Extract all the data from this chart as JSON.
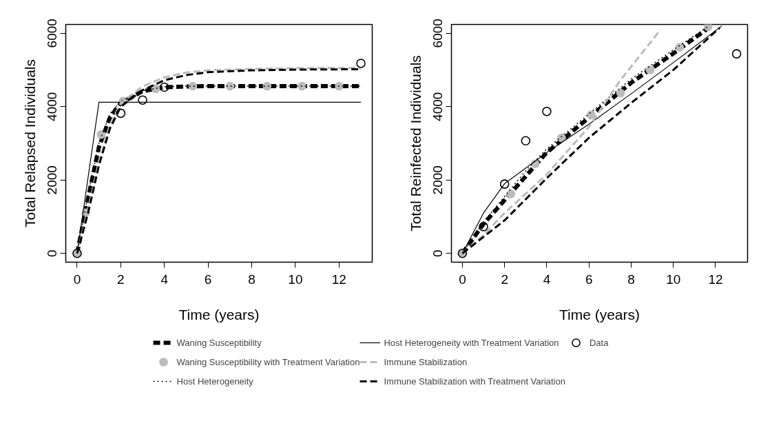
{
  "chart_data": [
    {
      "type": "line",
      "xlabel": "Time (years)",
      "ylabel": "Total Relapsed Individuals",
      "xlim": [
        -0.52,
        13.52
      ],
      "ylim": [
        -240,
        6240
      ],
      "xticks": [
        0,
        2,
        4,
        6,
        8,
        10,
        12
      ],
      "yticks": [
        0,
        2000,
        4000,
        6000
      ],
      "grid": false,
      "legend": "bottom",
      "series": [
        {
          "name": "Waning Susceptibility",
          "color": "#000000",
          "line_style": "dashed",
          "x": [
            0,
            0.5,
            1,
            1.5,
            2,
            3,
            4,
            5,
            6,
            8,
            10,
            13
          ],
          "values": [
            0,
            1500,
            2900,
            3700,
            4100,
            4420,
            4530,
            4550,
            4560,
            4560,
            4560,
            4560
          ]
        },
        {
          "name": "Waning Susceptibility with Treatment Variation",
          "type": "scatter",
          "marker": "circle",
          "color": "#bbbbbb",
          "x": [
            0,
            0.4,
            1.1,
            2.1,
            3.6,
            5.3,
            7.0,
            8.7,
            10.3,
            12.0
          ],
          "values": [
            0,
            1110,
            3240,
            4150,
            4490,
            4560,
            4560,
            4560,
            4560,
            4560
          ]
        },
        {
          "name": "Host Heterogeneity",
          "color": "#000000",
          "line_style": "dotted",
          "x": [
            0,
            0.5,
            1,
            1.5,
            2,
            3,
            4,
            5,
            6,
            8,
            10,
            13
          ],
          "values": [
            0,
            1600,
            3000,
            3800,
            4150,
            4430,
            4540,
            4560,
            4560,
            4560,
            4560,
            4560
          ]
        },
        {
          "name": "Host Heterogeneity with Treatment Variation",
          "color": "#000000",
          "line_style": "solid",
          "x": [
            0,
            1,
            13
          ],
          "values": [
            0,
            4120,
            4120
          ]
        },
        {
          "name": "Immune Stabilization",
          "color": "#bbbbbb",
          "line_style": "dashed",
          "x": [
            0,
            0.5,
            1,
            1.5,
            2,
            3,
            4,
            5,
            6,
            8,
            10,
            13
          ],
          "values": [
            0,
            1200,
            2500,
            3500,
            4100,
            4550,
            4800,
            4930,
            4990,
            5030,
            5050,
            5060
          ]
        },
        {
          "name": "Immune Stabilization with Treatment Variation",
          "color": "#000000",
          "line_style": "dashed",
          "x": [
            0,
            0.5,
            1,
            1.5,
            2,
            3,
            4,
            5,
            6,
            8,
            10,
            13
          ],
          "values": [
            0,
            1100,
            2400,
            3400,
            4000,
            4450,
            4720,
            4860,
            4940,
            4990,
            5010,
            5020
          ]
        },
        {
          "name": "Data",
          "type": "scatter",
          "marker": "circle",
          "color": "#000000",
          "x": [
            0,
            2,
            3,
            4,
            13
          ],
          "values": [
            0,
            3820,
            4180,
            4530,
            5180
          ]
        }
      ]
    },
    {
      "type": "line",
      "xlabel": "Time (years)",
      "ylabel": "Total Reinfected Individuals",
      "xlim": [
        -0.52,
        13.52
      ],
      "ylim": [
        -240,
        6240
      ],
      "xticks": [
        0,
        2,
        4,
        6,
        8,
        10,
        12
      ],
      "yticks": [
        0,
        2000,
        4000,
        6000
      ],
      "grid": false,
      "series": [
        {
          "color": "#000000",
          "line_style": "dashed",
          "x": [
            0,
            1,
            2,
            3,
            4,
            6,
            8,
            10,
            11.8
          ],
          "values": [
            0,
            800,
            1450,
            2100,
            2750,
            3700,
            4650,
            5450,
            6200
          ]
        },
        {
          "type": "scatter",
          "marker": "circle",
          "color": "#bbbbbb",
          "x": [
            0,
            2.3,
            3.45,
            4.7,
            6.1,
            7.5,
            8.9,
            10.3,
            11.65
          ],
          "values": [
            0,
            1620,
            2440,
            3150,
            3780,
            4370,
            5000,
            5620,
            6180
          ]
        },
        {
          "color": "#000000",
          "line_style": "dotted",
          "x": [
            0,
            1,
            2,
            3,
            4,
            6,
            8,
            10,
            11.7
          ],
          "values": [
            0,
            850,
            1550,
            2250,
            2850,
            3800,
            4750,
            5550,
            6200
          ]
        },
        {
          "color": "#000000",
          "line_style": "solid",
          "x": [
            0,
            1,
            2,
            4,
            6,
            8,
            10,
            12.3
          ],
          "values": [
            0,
            1100,
            1900,
            2750,
            3520,
            4350,
            5200,
            6200
          ]
        },
        {
          "color": "#bbbbbb",
          "line_style": "dashed",
          "x": [
            0,
            1,
            2,
            4,
            6,
            7.5,
            9.4
          ],
          "values": [
            0,
            500,
            1100,
            2150,
            3450,
            4730,
            6100
          ]
        },
        {
          "color": "#000000",
          "line_style": "dashed",
          "x": [
            0,
            2,
            4,
            6,
            8,
            10,
            12.2
          ],
          "values": [
            0,
            900,
            2050,
            3150,
            4100,
            5000,
            6150
          ]
        },
        {
          "type": "scatter",
          "marker": "circle",
          "color": "#000000",
          "x": [
            0,
            1,
            2,
            3,
            4,
            13
          ],
          "values": [
            0,
            730,
            1890,
            3070,
            3870,
            5440
          ]
        }
      ]
    }
  ]
}
